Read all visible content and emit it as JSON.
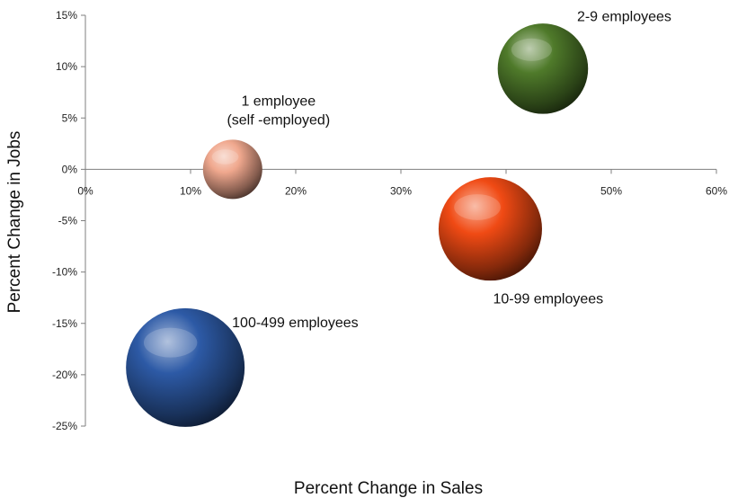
{
  "chart_data": {
    "type": "bubble",
    "xlabel": "Percent Change in Sales",
    "ylabel": "Percent Change in Jobs",
    "xlim": [
      0,
      60
    ],
    "ylim": [
      -25,
      15
    ],
    "x_ticks": [
      0,
      10,
      20,
      30,
      40,
      50,
      60
    ],
    "y_ticks": [
      15,
      10,
      5,
      0,
      -5,
      -10,
      -15,
      -20,
      -25
    ],
    "tick_suffix": "%",
    "grid": false,
    "points": [
      {
        "label_lines": [
          "1 employee",
          "(self -employed)"
        ],
        "x": 14,
        "y": 0,
        "relative_size": 0.25,
        "color": "#f0a88e"
      },
      {
        "label_lines": [
          "2-9 employees"
        ],
        "x": 43.5,
        "y": 9.8,
        "relative_size": 0.58,
        "color": "#4f7a2a"
      },
      {
        "label_lines": [
          "10-99 employees"
        ],
        "x": 38.5,
        "y": -5.8,
        "relative_size": 0.76,
        "color": "#f04a14"
      },
      {
        "label_lines": [
          "100-499 employees"
        ],
        "x": 9.5,
        "y": -19.3,
        "relative_size": 1.0,
        "color": "#2d5aa6"
      }
    ]
  }
}
